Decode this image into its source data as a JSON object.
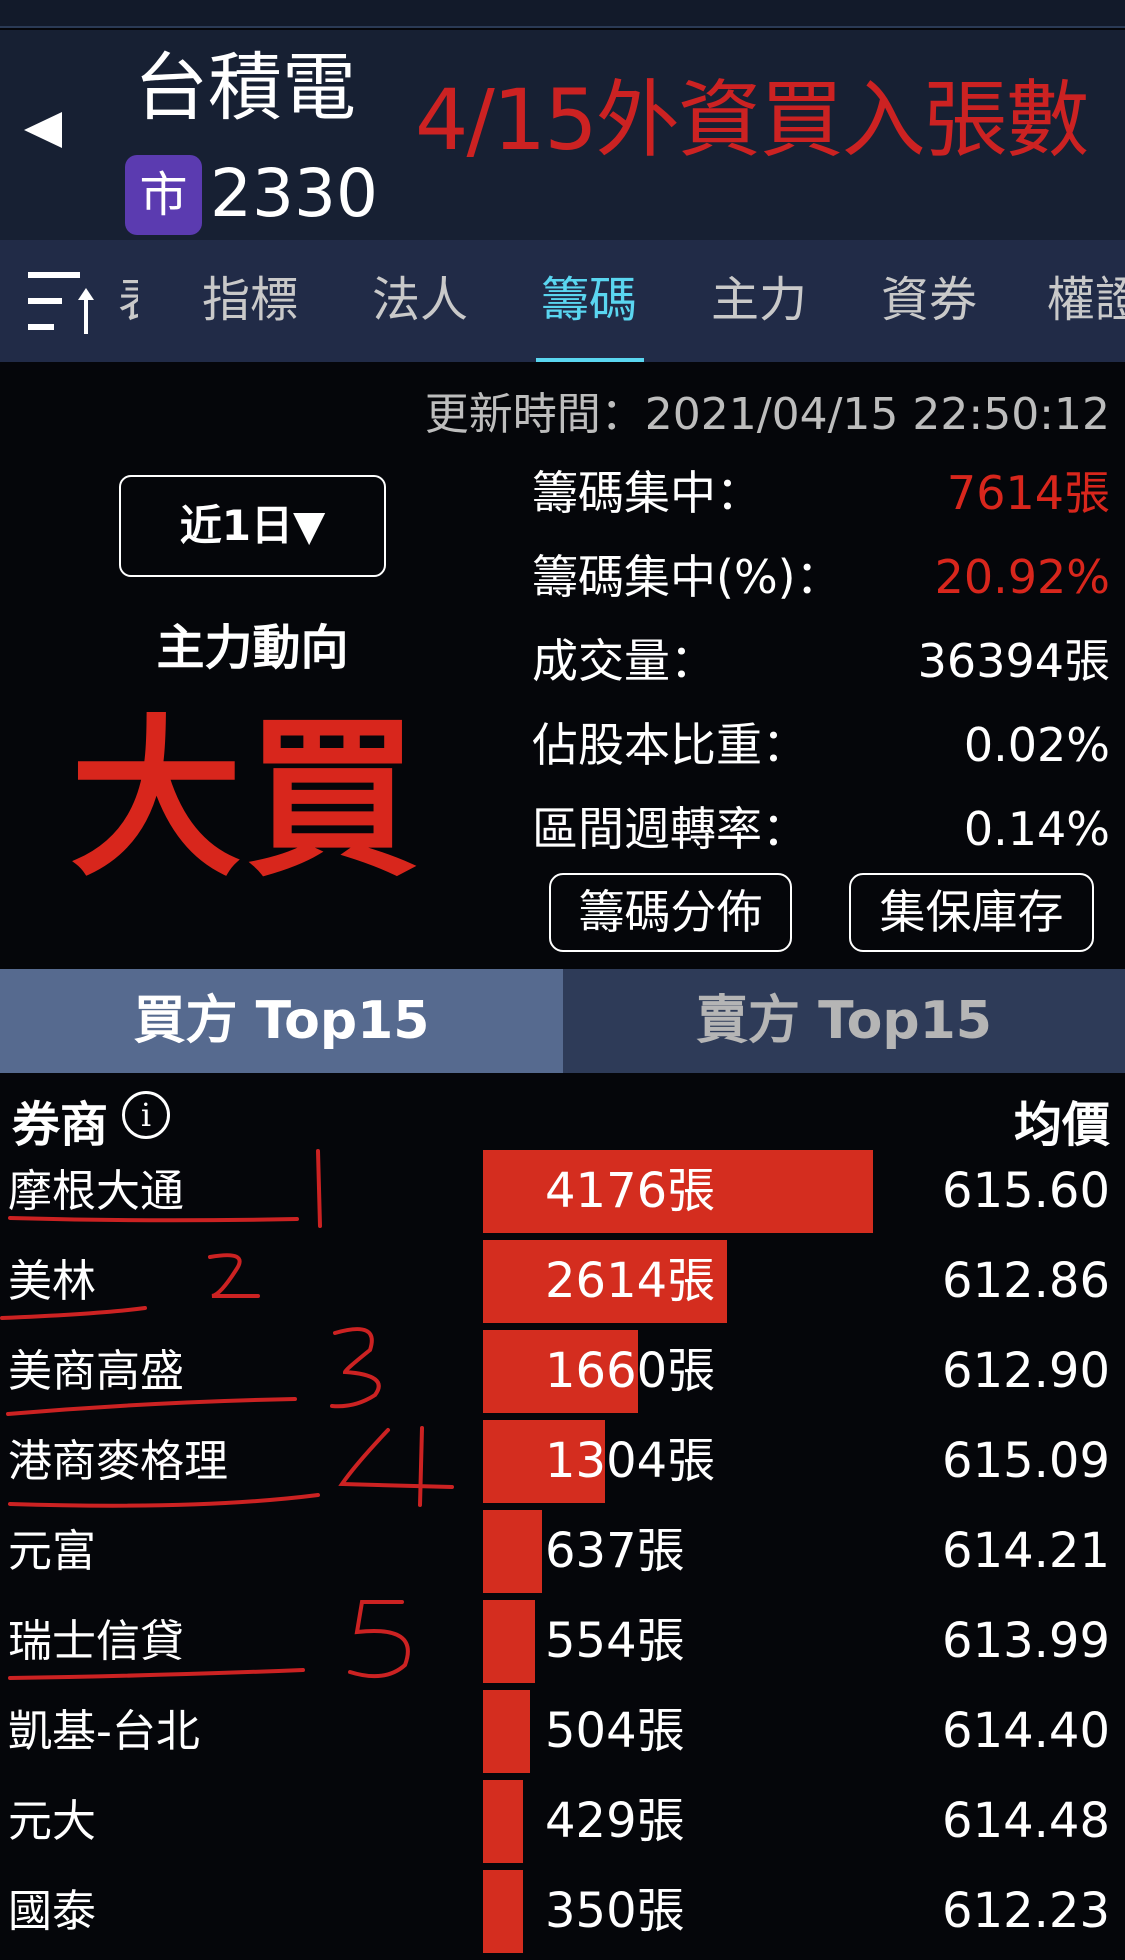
{
  "header": {
    "stock_name": "台積電",
    "market_badge": "市",
    "stock_code": "2330",
    "annotation": "4/15外資買入張數"
  },
  "tabs": [
    {
      "label": "表"
    },
    {
      "label": "指標"
    },
    {
      "label": "法人"
    },
    {
      "label": "籌碼",
      "active": true
    },
    {
      "label": "主力"
    },
    {
      "label": "資券"
    },
    {
      "label": "權證"
    }
  ],
  "update_time": "更新時間：2021/04/15 22:50:12",
  "period": "近1日▼",
  "trend_label": "主力動向",
  "trend": "大買",
  "stats": [
    {
      "label": "籌碼集中：",
      "value": "7614張",
      "highlight": true
    },
    {
      "label": "籌碼集中(%)：",
      "value": "20.92%",
      "highlight": true
    },
    {
      "label": "成交量：",
      "value": "36394張"
    },
    {
      "label": "佔股本比重：",
      "value": "0.02%"
    },
    {
      "label": "區間週轉率：",
      "value": "0.14%"
    }
  ],
  "buttons": {
    "distribution": "籌碼分佈",
    "custody": "集保庫存"
  },
  "top_tabs": {
    "buy": "買方 Top15",
    "sell": "賣方 Top15"
  },
  "columns": {
    "broker": "券商",
    "avg_price": "均價"
  },
  "unit": "張",
  "rows": [
    {
      "broker": "摩根大通",
      "lots": 4176,
      "price": "615.60"
    },
    {
      "broker": "美林",
      "lots": 2614,
      "price": "612.86"
    },
    {
      "broker": "美商高盛",
      "lots": 1660,
      "price": "612.90"
    },
    {
      "broker": "港商麥格理",
      "lots": 1304,
      "price": "615.09"
    },
    {
      "broker": "元富",
      "lots": 637,
      "price": "614.21"
    },
    {
      "broker": "瑞士信貸",
      "lots": 554,
      "price": "613.99"
    },
    {
      "broker": "凱基-台北",
      "lots": 504,
      "price": "614.40"
    },
    {
      "broker": "元大",
      "lots": 429,
      "price": "614.48"
    },
    {
      "broker": "國泰",
      "lots": 350,
      "price": "612.23"
    }
  ],
  "annotation_marks": [
    "1",
    "2",
    "3",
    "4",
    "5"
  ],
  "colors": {
    "accent": "#5ad6f0",
    "bar": "#d42d1f",
    "badge": "#5b3bb0",
    "annotation": "#cc2222"
  }
}
